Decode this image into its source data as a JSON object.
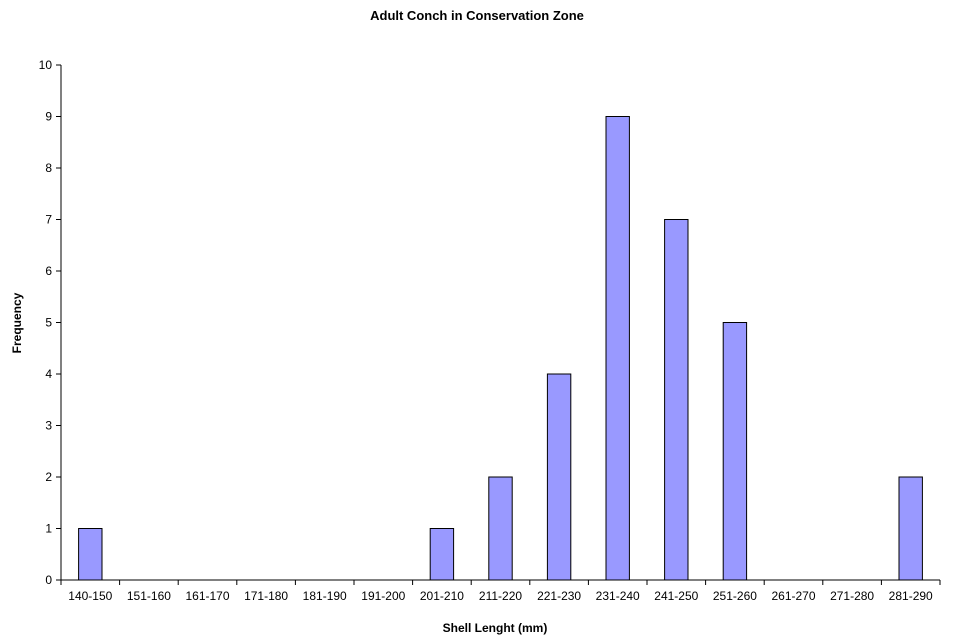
{
  "chart_data": {
    "type": "bar",
    "title": "Adult Conch in Conservation Zone",
    "xlabel": "Shell Lenght (mm)",
    "ylabel": "Frequency",
    "categories": [
      "140-150",
      "151-160",
      "161-170",
      "171-180",
      "181-190",
      "191-200",
      "201-210",
      "211-220",
      "221-230",
      "231-240",
      "241-250",
      "251-260",
      "261-270",
      "271-280",
      "281-290"
    ],
    "values": [
      1,
      0,
      0,
      0,
      0,
      0,
      1,
      2,
      4,
      9,
      7,
      5,
      0,
      0,
      2
    ],
    "ylim": [
      0,
      10
    ],
    "yticks": [
      0,
      1,
      2,
      3,
      4,
      5,
      6,
      7,
      8,
      9,
      10
    ],
    "grid": false,
    "legend": false,
    "colors": {
      "bar_fill": "#9999FF",
      "bar_stroke": "#000000",
      "axis": "#000000"
    }
  }
}
